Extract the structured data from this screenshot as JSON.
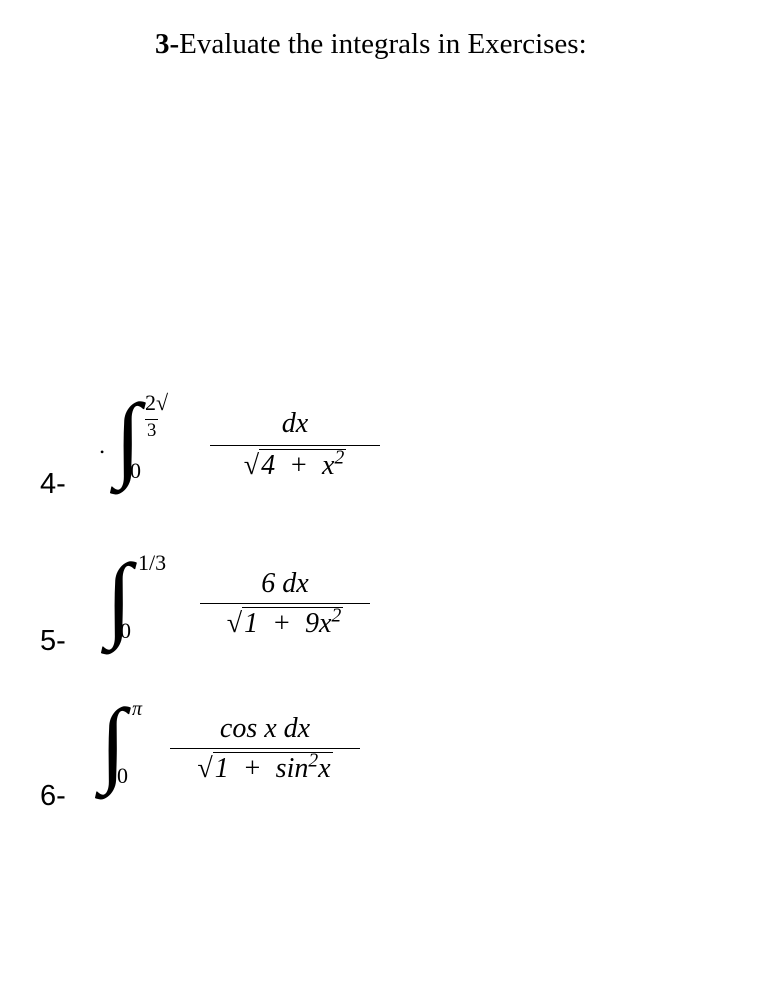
{
  "header": {
    "bold_prefix": "3-",
    "text": "Evaluate the integrals in Exercises:"
  },
  "problems": {
    "p4": {
      "label": "4-",
      "upper_limit_html": "2<span class='sqrt-sign'>√</span><span class='sqrt-line sqrt-small'>3</span>",
      "lower_limit": "0",
      "numerator_html": "dx",
      "denominator_html": "<span class='sqrt-sign nonitalic'>√</span><span class='sqrt-line'>4 &nbsp;+&nbsp; x<span class='sup'>2</span></span>"
    },
    "p5": {
      "label": "5-",
      "upper_limit": "1/3",
      "lower_limit": "0",
      "numerator_html": "6 <span>dx</span>",
      "denominator_html": "<span class='sqrt-sign nonitalic'>√</span><span class='sqrt-line'>1 &nbsp;+&nbsp; 9x<span class='sup'>2</span></span>"
    },
    "p6": {
      "label": "6-",
      "upper_limit": "π",
      "lower_limit": "0",
      "numerator_html": "cos <span>x dx</span>",
      "denominator_html": "<span class='sqrt-sign nonitalic'>√</span><span class='sqrt-line'>1 &nbsp;+&nbsp; sin<span class='sup'>2</span>x</span>"
    }
  }
}
